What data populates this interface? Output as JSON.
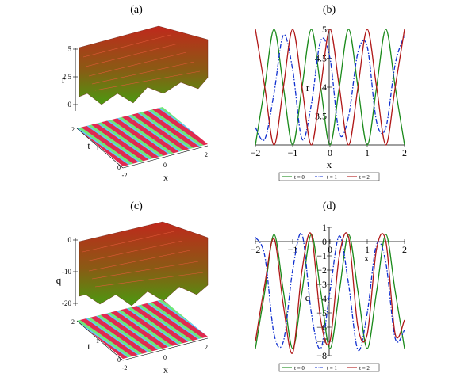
{
  "panels": [
    {
      "id": "a",
      "label": "(a)",
      "zlabel": "r",
      "zticks": [
        "5",
        "2.5",
        "0"
      ],
      "tticks": [
        "2",
        "1",
        "0"
      ],
      "xticks": [
        "-2",
        "0",
        "2"
      ],
      "xlabel": "x",
      "tlabel": "t",
      "colors": {
        "top": "#c0281c",
        "bottom": "#4a9a10",
        "pattern": [
          "#e02a50",
          "#70e878",
          "#60c8ff"
        ]
      }
    },
    {
      "id": "c",
      "label": "(c)",
      "zlabel": "q",
      "zticks": [
        "0",
        "-10",
        "-20"
      ],
      "tticks": [
        "2",
        "1",
        "0"
      ],
      "xticks": [
        "-2",
        "0",
        "2"
      ],
      "xlabel": "x",
      "tlabel": "t",
      "colors": {
        "top": "#c0281c",
        "bottom": "#4a9a10",
        "pattern": [
          "#e02a50",
          "#70e878",
          "#60c8ff"
        ]
      }
    }
  ],
  "chart_data": [
    {
      "type": "line",
      "panel": "(b)",
      "xlabel": "x",
      "ylabel": "r",
      "xlim": [
        -2,
        2
      ],
      "ylim": [
        3,
        5
      ],
      "xticks": [
        -2,
        -1,
        0,
        1,
        2
      ],
      "yticks": [
        3.5,
        4,
        4.5,
        5
      ],
      "series": [
        {
          "name": "t = 0",
          "color": "#1a8a1a",
          "dash": "solid",
          "x": [
            -2,
            -1.75,
            -1.5,
            -1.25,
            -1,
            -0.75,
            -0.5,
            -0.25,
            0,
            0.25,
            0.5,
            0.75,
            1,
            1.25,
            1.5,
            1.75,
            2
          ],
          "values": [
            3.0,
            4.0,
            5.0,
            4.0,
            3.0,
            4.0,
            5.0,
            4.0,
            3.0,
            4.0,
            5.0,
            4.0,
            3.0,
            4.0,
            5.0,
            4.0,
            3.0
          ]
        },
        {
          "name": "t = 1",
          "color": "#1030d0",
          "dash": "dashdot",
          "x": [
            -2,
            -1.75,
            -1.5,
            -1.25,
            -1,
            -0.75,
            -0.5,
            -0.25,
            0,
            0.25,
            0.5,
            0.75,
            1,
            1.25,
            1.5,
            1.75,
            2
          ],
          "values": [
            3.3,
            3.1,
            3.9,
            4.9,
            4.3,
            3.1,
            3.7,
            4.8,
            4.5,
            3.2,
            3.5,
            4.6,
            4.7,
            3.4,
            3.3,
            4.4,
            4.9
          ]
        },
        {
          "name": "t = 2",
          "color": "#b01818",
          "dash": "solid",
          "x": [
            -2,
            -1.75,
            -1.5,
            -1.25,
            -1,
            -0.75,
            -0.5,
            -0.25,
            0,
            0.25,
            0.5,
            0.75,
            1,
            1.25,
            1.5,
            1.75,
            2
          ],
          "values": [
            5.0,
            4.0,
            3.0,
            4.0,
            5.0,
            4.0,
            3.0,
            4.0,
            5.0,
            4.0,
            3.0,
            4.0,
            5.0,
            4.0,
            3.0,
            4.0,
            5.0
          ]
        }
      ]
    },
    {
      "type": "line",
      "panel": "(d)",
      "xlabel": "x",
      "ylabel": "q",
      "xlim": [
        -2,
        2
      ],
      "ylim": [
        -8,
        1
      ],
      "xticks": [
        -2,
        -1,
        0,
        1,
        2
      ],
      "yticks": [
        1,
        0,
        -1,
        -2,
        -3,
        -4,
        -5,
        -6,
        -7,
        -8
      ],
      "series": [
        {
          "name": "t = 0",
          "color": "#1a8a1a",
          "dash": "solid",
          "x": [
            -2,
            -1.75,
            -1.5,
            -1.25,
            -1,
            -0.75,
            -0.5,
            -0.25,
            0,
            0.25,
            0.5,
            0.75,
            1,
            1.25,
            1.5,
            1.75,
            2
          ],
          "values": [
            -7.5,
            -3.5,
            0.5,
            -3.5,
            -7.5,
            -3.5,
            0.5,
            -3.5,
            -7.5,
            -3.5,
            0.5,
            -3.5,
            -7.5,
            -3.5,
            0.5,
            -3.5,
            -7.5
          ]
        },
        {
          "name": "t = 1",
          "color": "#1030d0",
          "dash": "dashdot",
          "x": [
            -2,
            -1.75,
            -1.5,
            -1.25,
            -1,
            -0.75,
            -0.5,
            -0.25,
            0,
            0.25,
            0.5,
            0.75,
            1,
            1.25,
            1.5,
            1.75,
            2
          ],
          "values": [
            0.3,
            -1.0,
            -6.5,
            -7.0,
            -2.0,
            0.5,
            -5.0,
            -7.5,
            -3.5,
            0.4,
            -3.0,
            -7.6,
            -5.0,
            -0.2,
            -1.5,
            -6.8,
            -6.2
          ]
        },
        {
          "name": "t = 2",
          "color": "#b01818",
          "dash": "solid",
          "x": [
            -2,
            -1.75,
            -1.5,
            -1.25,
            -1,
            -0.75,
            -0.5,
            -0.25,
            0,
            0.25,
            0.5,
            0.75,
            1,
            1.25,
            1.5,
            1.75,
            2
          ],
          "values": [
            -7.0,
            -3.0,
            0.2,
            -4.5,
            -7.8,
            -2.0,
            0.5,
            -5.5,
            -7.0,
            -1.0,
            0.3,
            -6.0,
            -6.5,
            -0.5,
            0.0,
            -6.5,
            -5.5
          ]
        }
      ]
    }
  ]
}
